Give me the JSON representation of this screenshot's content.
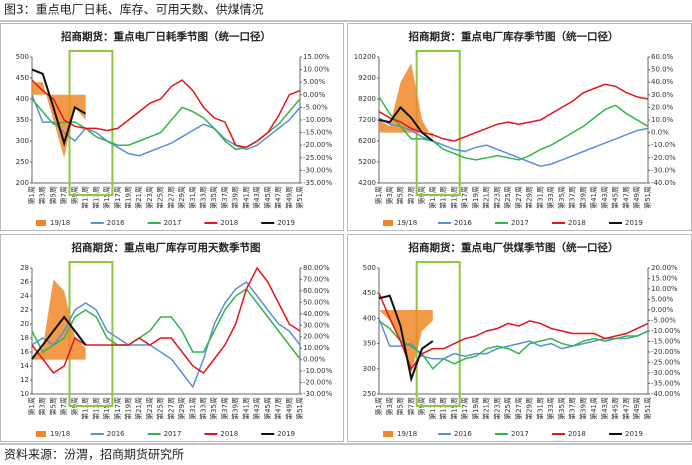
{
  "figure_title": "图3：重点电厂日耗、库存、可用天数、供煤情况",
  "source": "资料来源：汾渭，招商期货研究所",
  "chart_data": [
    {
      "type": "line",
      "title": "招商期货：重点电厂日耗季节图（统一口径）",
      "categories": [
        "第1周",
        "第3周",
        "第5周",
        "第7周",
        "第9周",
        "第11周",
        "第13周",
        "第15周",
        "第17周",
        "第19周",
        "第21周",
        "第23周",
        "第25周",
        "第27周",
        "第29周",
        "第31周",
        "第33周",
        "第35周",
        "第37周",
        "第39周",
        "第41周",
        "第43周",
        "第45周",
        "第47周",
        "第49周",
        "第51周"
      ],
      "ylim": [
        200,
        500
      ],
      "yticks": [
        200,
        250,
        300,
        350,
        400,
        450,
        500
      ],
      "y2lim": [
        -35,
        15
      ],
      "y2ticks": [
        {
          "value": -35,
          "label": "-35.00%"
        },
        {
          "value": -30,
          "label": "-30.00%"
        },
        {
          "value": -25,
          "label": "-25.00%"
        },
        {
          "value": -20,
          "label": "-20.00%"
        },
        {
          "value": -15,
          "label": "-15.00%"
        },
        {
          "value": -10,
          "label": "-10.00%"
        },
        {
          "value": -5,
          "label": "-5.00%"
        },
        {
          "value": 0,
          "label": "0.00%"
        },
        {
          "value": 5,
          "label": "5.00%"
        },
        {
          "value": 10,
          "label": "10.00%"
        },
        {
          "value": 15,
          "label": "15.00%"
        }
      ],
      "series": [
        {
          "name": "19/18",
          "color": "#f0882a",
          "axis": "y2",
          "mark": "area",
          "values": [
            5,
            5,
            -10,
            -25,
            -5,
            -10,
            null,
            null,
            null,
            null,
            null,
            null,
            null,
            null,
            null,
            null,
            null,
            null,
            null,
            null,
            null,
            null,
            null,
            null,
            null,
            null
          ]
        },
        {
          "name": "2016",
          "color": "#5b8fd6",
          "values": [
            410,
            345,
            345,
            320,
            300,
            330,
            320,
            300,
            285,
            270,
            265,
            275,
            285,
            295,
            310,
            325,
            340,
            330,
            305,
            290,
            280,
            290,
            310,
            330,
            350,
            380
          ]
        },
        {
          "name": "2017",
          "color": "#33b54a",
          "values": [
            400,
            370,
            340,
            345,
            345,
            330,
            310,
            300,
            290,
            290,
            300,
            310,
            320,
            350,
            380,
            370,
            355,
            330,
            300,
            280,
            285,
            300,
            320,
            340,
            370,
            400
          ]
        },
        {
          "name": "2018",
          "color": "#e3151b",
          "values": [
            445,
            420,
            400,
            350,
            335,
            330,
            330,
            325,
            330,
            350,
            370,
            390,
            400,
            430,
            445,
            420,
            380,
            355,
            345,
            290,
            285,
            300,
            320,
            360,
            410,
            420
          ]
        },
        {
          "name": "2019",
          "color": "#111111",
          "values": [
            470,
            460,
            380,
            295,
            380,
            365,
            null,
            null,
            null,
            null,
            null,
            null,
            null,
            null,
            null,
            null,
            null,
            null,
            null,
            null,
            null,
            null,
            null,
            null,
            null,
            null
          ]
        }
      ]
    },
    {
      "type": "line",
      "title": "招商期货：重点电厂库存季节图（统一口径）",
      "categories": [
        "第1周",
        "第3周",
        "第5周",
        "第7周",
        "第9周",
        "第11周",
        "第13周",
        "第15周",
        "第17周",
        "第19周",
        "第21周",
        "第23周",
        "第25周",
        "第27周",
        "第29周",
        "第31周",
        "第33周",
        "第35周",
        "第37周",
        "第39周",
        "第41周",
        "第43周",
        "第45周",
        "第47周",
        "第49周",
        "第51周"
      ],
      "ylim": [
        4200,
        10200
      ],
      "yticks": [
        4200,
        5200,
        6200,
        7200,
        8200,
        9200,
        10200
      ],
      "y2lim": [
        -40,
        60
      ],
      "y2ticks": [
        {
          "value": -40,
          "label": "-40.0%"
        },
        {
          "value": -30,
          "label": "-30.0%"
        },
        {
          "value": -20,
          "label": "-20.0%"
        },
        {
          "value": -10,
          "label": "-10.0%"
        },
        {
          "value": 0,
          "label": "0.0%"
        },
        {
          "value": 10,
          "label": "10.0%"
        },
        {
          "value": 20,
          "label": "20.0%"
        },
        {
          "value": 30,
          "label": "30.0%"
        },
        {
          "value": 40,
          "label": "40.0%"
        },
        {
          "value": 50,
          "label": "50.0%"
        },
        {
          "value": 60,
          "label": "60.0%"
        }
      ],
      "series": [
        {
          "name": "19/18",
          "color": "#f0882a",
          "axis": "y2",
          "mark": "area",
          "values": [
            10,
            5,
            40,
            55,
            10,
            -5,
            null,
            null,
            null,
            null,
            null,
            null,
            null,
            null,
            null,
            null,
            null,
            null,
            null,
            null,
            null,
            null,
            null,
            null,
            null,
            null
          ]
        },
        {
          "name": "2016",
          "color": "#5b8fd6",
          "values": [
            7300,
            7000,
            6900,
            6700,
            6400,
            6200,
            6000,
            5800,
            5700,
            5900,
            6000,
            5800,
            5600,
            5400,
            5200,
            5000,
            5100,
            5300,
            5500,
            5700,
            5900,
            6100,
            6300,
            6500,
            6700,
            6800
          ]
        },
        {
          "name": "2017",
          "color": "#33b54a",
          "values": [
            8300,
            7500,
            6900,
            6300,
            6300,
            6200,
            5800,
            5600,
            5400,
            5300,
            5400,
            5500,
            5400,
            5300,
            5500,
            5800,
            6000,
            6300,
            6600,
            6900,
            7300,
            7700,
            7900,
            7500,
            7200,
            6900
          ]
        },
        {
          "name": "2018",
          "color": "#e3151b",
          "values": [
            7600,
            7300,
            7100,
            6800,
            6600,
            6500,
            6300,
            6200,
            6400,
            6600,
            6800,
            7000,
            7100,
            7000,
            7100,
            7200,
            7500,
            7800,
            8100,
            8500,
            8700,
            8900,
            8800,
            8500,
            8300,
            8200
          ]
        },
        {
          "name": "2019",
          "color": "#111111",
          "values": [
            7200,
            7100,
            7800,
            7300,
            6600,
            6200,
            null,
            null,
            null,
            null,
            null,
            null,
            null,
            null,
            null,
            null,
            null,
            null,
            null,
            null,
            null,
            null,
            null,
            null,
            null,
            null
          ]
        }
      ]
    },
    {
      "type": "line",
      "title": "招商期货：重点电厂库存可用天数季节图",
      "categories": [
        "第1周",
        "第3周",
        "第5周",
        "第7周",
        "第9周",
        "第11周",
        "第13周",
        "第15周",
        "第17周",
        "第19周",
        "第21周",
        "第23周",
        "第25周",
        "第27周",
        "第29周",
        "第31周",
        "第33周",
        "第35周",
        "第37周",
        "第39周",
        "第41周",
        "第43周",
        "第45周",
        "第47周",
        "第49周",
        "第51周"
      ],
      "ylim": [
        10,
        28
      ],
      "yticks": [
        10,
        12,
        14,
        16,
        18,
        20,
        22,
        24,
        26,
        28
      ],
      "y2lim": [
        -30,
        80
      ],
      "y2ticks": [
        {
          "value": -30,
          "label": "-30.00%"
        },
        {
          "value": -20,
          "label": "-20.00%"
        },
        {
          "value": -10,
          "label": "-10.00%"
        },
        {
          "value": 0,
          "label": "0.00%"
        },
        {
          "value": 10,
          "label": "10.00%"
        },
        {
          "value": 20,
          "label": "20.00%"
        },
        {
          "value": 30,
          "label": "30.00%"
        },
        {
          "value": 40,
          "label": "40.00%"
        },
        {
          "value": 50,
          "label": "50.00%"
        },
        {
          "value": 60,
          "label": "60.00%"
        },
        {
          "value": 70,
          "label": "70.00%"
        },
        {
          "value": 80,
          "label": "80.00%"
        }
      ],
      "series": [
        {
          "name": "19/18",
          "color": "#f0882a",
          "axis": "y2",
          "mark": "area",
          "values": [
            0,
            10,
            70,
            60,
            20,
            10,
            null,
            null,
            null,
            null,
            null,
            null,
            null,
            null,
            null,
            null,
            null,
            null,
            null,
            null,
            null,
            null,
            null,
            null,
            null,
            null
          ]
        },
        {
          "name": "2016",
          "color": "#5b8fd6",
          "values": [
            17,
            18,
            17,
            19,
            22,
            23,
            22,
            19,
            18,
            17,
            17,
            17,
            16,
            15,
            13,
            11,
            15,
            20,
            23,
            25,
            26,
            24,
            22,
            20,
            19,
            17
          ]
        },
        {
          "name": "2017",
          "color": "#33b54a",
          "values": [
            19,
            16,
            17,
            18,
            21,
            22,
            21,
            18,
            17,
            17,
            18,
            19,
            21,
            21,
            19,
            16,
            16,
            19,
            22,
            24,
            25,
            23,
            21,
            19,
            17,
            15
          ]
        },
        {
          "name": "2018",
          "color": "#e3151b",
          "values": [
            17,
            15,
            13,
            14,
            18,
            17,
            17,
            17,
            17,
            17,
            18,
            17,
            18,
            18,
            16,
            14,
            13,
            15,
            17,
            20,
            25,
            28,
            26,
            23,
            20,
            19
          ]
        },
        {
          "name": "2019",
          "color": "#111111",
          "values": [
            15,
            17,
            19,
            21,
            19,
            17,
            null,
            null,
            null,
            null,
            null,
            null,
            null,
            null,
            null,
            null,
            null,
            null,
            null,
            null,
            null,
            null,
            null,
            null,
            null,
            null
          ]
        }
      ]
    },
    {
      "type": "line",
      "title": "招商期货：重点电厂供煤季节图（统一口径）",
      "categories": [
        "第1周",
        "第3周",
        "第5周",
        "第7周",
        "第9周",
        "第11周",
        "第13周",
        "第15周",
        "第17周",
        "第19周",
        "第21周",
        "第23周",
        "第25周",
        "第27周",
        "第29周",
        "第31周",
        "第33周",
        "第35周",
        "第37周",
        "第39周",
        "第41周",
        "第43周",
        "第45周",
        "第47周",
        "第49周",
        "第51周"
      ],
      "ylim": [
        250,
        500
      ],
      "yticks": [
        250,
        300,
        350,
        400,
        450,
        500
      ],
      "y2lim": [
        -40,
        20
      ],
      "y2ticks": [
        {
          "value": -40,
          "label": "-40.00%"
        },
        {
          "value": -35,
          "label": "-35.00%"
        },
        {
          "value": -30,
          "label": "-30.00%"
        },
        {
          "value": -25,
          "label": "-25.00%"
        },
        {
          "value": -20,
          "label": "-20.00%"
        },
        {
          "value": -15,
          "label": "-15.00%"
        },
        {
          "value": -10,
          "label": "-10.00%"
        },
        {
          "value": -5,
          "label": "-5.00%"
        },
        {
          "value": 0,
          "label": "0.00%"
        },
        {
          "value": 5,
          "label": "5.00%"
        },
        {
          "value": 10,
          "label": "10.00%"
        },
        {
          "value": 15,
          "label": "15.00%"
        },
        {
          "value": 20,
          "label": "20.00%"
        }
      ],
      "series": [
        {
          "name": "19/18",
          "color": "#f0882a",
          "axis": "y2",
          "mark": "area",
          "values": [
            0,
            -5,
            -15,
            -30,
            -10,
            -5,
            null,
            null,
            null,
            null,
            null,
            null,
            null,
            null,
            null,
            null,
            null,
            null,
            null,
            null,
            null,
            null,
            null,
            null,
            null,
            null
          ]
        },
        {
          "name": "2016",
          "color": "#5b8fd6",
          "values": [
            400,
            345,
            345,
            350,
            325,
            320,
            320,
            330,
            325,
            330,
            330,
            340,
            345,
            350,
            355,
            345,
            350,
            340,
            345,
            350,
            355,
            360,
            360,
            360,
            365,
            375
          ]
        },
        {
          "name": "2017",
          "color": "#33b54a",
          "values": [
            395,
            380,
            355,
            345,
            330,
            300,
            320,
            310,
            320,
            325,
            340,
            345,
            340,
            330,
            350,
            355,
            360,
            350,
            345,
            355,
            360,
            355,
            360,
            365,
            365,
            375
          ]
        },
        {
          "name": "2018",
          "color": "#e3151b",
          "values": [
            450,
            400,
            355,
            300,
            330,
            340,
            340,
            350,
            360,
            365,
            375,
            380,
            390,
            385,
            395,
            390,
            380,
            375,
            370,
            370,
            370,
            360,
            365,
            370,
            380,
            390
          ]
        },
        {
          "name": "2019",
          "color": "#111111",
          "values": [
            440,
            445,
            385,
            280,
            340,
            355,
            null,
            null,
            null,
            null,
            null,
            null,
            null,
            null,
            null,
            null,
            null,
            null,
            null,
            null,
            null,
            null,
            null,
            null,
            null,
            null
          ]
        }
      ]
    }
  ]
}
